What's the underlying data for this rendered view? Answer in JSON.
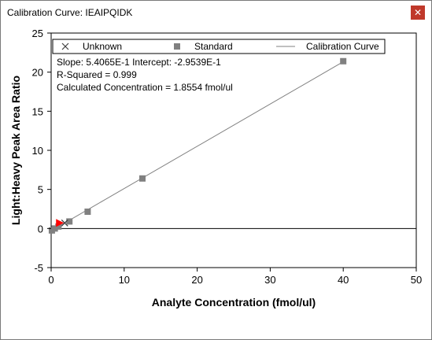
{
  "window": {
    "title": "Calibration Curve: IEAIPQIDK",
    "close_glyph": "✕"
  },
  "chart_data": {
    "type": "scatter",
    "title": "",
    "xlabel": "Analyte Concentration (fmol/ul)",
    "ylabel": "Light:Heavy Peak Area Ratio",
    "xlim": [
      0,
      50
    ],
    "ylim": [
      -5,
      25
    ],
    "x_ticks": [
      0,
      10,
      20,
      30,
      40,
      50
    ],
    "y_ticks": [
      -5,
      0,
      5,
      10,
      15,
      20,
      25
    ],
    "grid": false,
    "legend_position": "top",
    "legend": [
      {
        "label": "Unknown",
        "marker": "x"
      },
      {
        "label": "Standard",
        "marker": "square"
      },
      {
        "label": "Calibration Curve",
        "marker": "line"
      }
    ],
    "annotations": [
      "Slope: 5.4065E-1 Intercept: -2.9539E-1",
      "R-Squared = 0.999",
      "Calculated Concentration = 1.8554 fmol/ul"
    ],
    "series": [
      {
        "name": "Standard",
        "marker": "square",
        "color": "#808080",
        "x": [
          0.1,
          0.5,
          1.0,
          2.5,
          5.0,
          12.5,
          40.0
        ],
        "y": [
          -0.25,
          0.0,
          0.25,
          0.9,
          2.15,
          6.4,
          21.4
        ]
      },
      {
        "name": "Unknown",
        "marker": "x",
        "color": "#404040",
        "x": [
          1.8554
        ],
        "y": [
          0.708
        ]
      }
    ],
    "calibration_line": {
      "slope": 0.54065,
      "intercept": -0.29539,
      "x_range": [
        0,
        40
      ],
      "color": "#808080"
    },
    "zero_line_color": "#000000",
    "highlight_marker": {
      "x": 1.8554,
      "y": 0.708,
      "color": "#ff0000",
      "shape": "triangle-right"
    }
  }
}
